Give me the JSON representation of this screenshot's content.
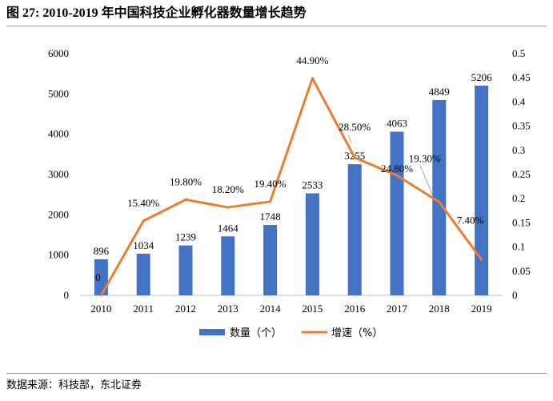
{
  "figure": {
    "title": "图 27: 2010-2019 年中国科技企业孵化器数量增长趋势",
    "source": "数据来源：科技部，东北证券"
  },
  "chart_data": {
    "type": "bar+line",
    "categories": [
      "2010",
      "2011",
      "2012",
      "2013",
      "2014",
      "2015",
      "2016",
      "2017",
      "2018",
      "2019"
    ],
    "series": [
      {
        "name": "数量（个）",
        "type": "bar",
        "axis": "left",
        "values": [
          896,
          1034,
          1239,
          1464,
          1748,
          2533,
          3255,
          4063,
          4849,
          5206
        ],
        "labels": [
          "896",
          "1034",
          "1239",
          "1464",
          "1748",
          "2533",
          "3255",
          "4063",
          "4849",
          "5206"
        ],
        "color": "#4472C4"
      },
      {
        "name": "增速（%）",
        "type": "line",
        "axis": "right",
        "values": [
          0,
          0.154,
          0.198,
          0.182,
          0.194,
          0.449,
          0.285,
          0.248,
          0.193,
          0.074
        ],
        "labels": [
          "0",
          "15.40%",
          "19.80%",
          "18.20%",
          "19.40%",
          "44.90%",
          "28.50%",
          "24.80%",
          "19.30%",
          "7.40%"
        ],
        "color": "#ED7D31"
      }
    ],
    "y_left": {
      "min": 0,
      "max": 6000,
      "ticks": [
        "0",
        "1000",
        "2000",
        "3000",
        "4000",
        "5000",
        "6000"
      ]
    },
    "y_right": {
      "min": 0,
      "max": 0.5,
      "ticks": [
        "0",
        "0.05",
        "0.1",
        "0.15",
        "0.2",
        "0.25",
        "0.3",
        "0.35",
        "0.4",
        "0.45",
        "0.5"
      ]
    },
    "legend": {
      "position": "bottom",
      "items": [
        "数量（个）",
        "增速（%）"
      ]
    },
    "grid": false
  }
}
